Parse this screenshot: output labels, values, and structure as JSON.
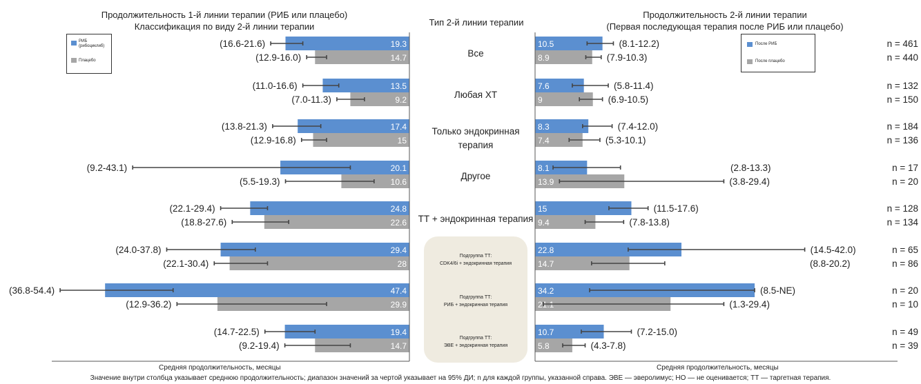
{
  "titles": {
    "left_line1": "Продолжительность 1-й линии терапии (РИБ или плацебо)",
    "left_line2": "Классификация по виду 2-й линии терапии",
    "center": "Тип 2-й линии терапии",
    "right_line1": "Продолжительность 2-й линии терапии",
    "right_line2": "(Первая последующая терапия после РИБ или плацебо)"
  },
  "legend_left": {
    "items": [
      {
        "label": "РИБ",
        "sublabel": "(рибоциклиб)",
        "color": "#5b8fd0"
      },
      {
        "label": "Плацебо",
        "sublabel": "",
        "color": "#a6a6a6"
      }
    ]
  },
  "legend_right": {
    "items": [
      {
        "label": "После РИБ",
        "color": "#5b8fd0"
      },
      {
        "label": "После плацебо",
        "color": "#a6a6a6"
      }
    ]
  },
  "categories": [
    {
      "line1": "Все",
      "line2": ""
    },
    {
      "line1": "Любая ХТ",
      "line2": ""
    },
    {
      "line1": "Только эндокринная",
      "line2": "терапия"
    },
    {
      "line1": "Другое",
      "line2": ""
    },
    {
      "line1": "ТТ + эндокринная терапия",
      "line2": ""
    }
  ],
  "subgroups": [
    {
      "line1": "Подгруппа ТТ:",
      "line2": "CDK4/6i + эндокринная терапия"
    },
    {
      "line1": "Подгруппа ТТ:",
      "line2": "РИБ + эндокринная терапия"
    },
    {
      "line1": "Подгруппа ТТ:",
      "line2": "ЭВЕ + эндокринная терапия"
    }
  ],
  "footer": {
    "left_axis": "Средняя продолжительность, месяцы",
    "right_axis": "Средняя продолжительность, месяцы",
    "note": "Значение внутри столбца указывает среднюю продолжительность; диапазон значений за чертой указывает на 95% ДИ; n для каждой группы, указанной справа. ЭВЕ — эверолимус; НО — не оценивается; ТТ — таргетная терапия."
  },
  "chart_data": [
    {
      "type": "bar",
      "orientation": "horizontal",
      "direction": "right-to-left",
      "title": "Продолжительность 1-й линии терапии (РИБ или плацебо)",
      "xlabel": "Средняя продолжительность, месяцы",
      "categories": [
        "Все",
        "Любая ХТ",
        "Только эндокринная терапия",
        "Другое",
        "ТТ + эндокринная терапия",
        "CDK4/6i + эндокринная терапия",
        "РИБ + эндокринная терапия",
        "ЭВЕ + эндокринная терапия"
      ],
      "series": [
        {
          "name": "РИБ",
          "color": "#5b8fd0",
          "values": [
            19.3,
            13.5,
            17.4,
            20.1,
            24.8,
            29.4,
            47.4,
            19.4
          ],
          "ci_text": [
            "(16.6-21.6)",
            "(11.0-16.6)",
            "(13.8-21.3)",
            "(9.2-43.1)",
            "(22.1-29.4)",
            "(24.0-37.8)",
            "(36.8-54.4)",
            "(14.7-22.5)"
          ],
          "ci_low": [
            16.6,
            11.0,
            13.8,
            9.2,
            22.1,
            24.0,
            36.8,
            14.7
          ],
          "ci_high": [
            21.6,
            16.6,
            21.3,
            43.1,
            29.4,
            37.8,
            54.4,
            22.5
          ]
        },
        {
          "name": "Плацебо",
          "color": "#a6a6a6",
          "values": [
            14.7,
            9.2,
            15.0,
            10.6,
            22.6,
            28.0,
            29.9,
            14.7
          ],
          "ci_text": [
            "(12.9-16.0)",
            "(7.0-11.3)",
            "(12.9-16.8)",
            "(5.5-19.3)",
            "(18.8-27.6)",
            "(22.1-30.4)",
            "(12.9-36.2)",
            "(9.2-19.4)"
          ],
          "ci_low": [
            12.9,
            7.0,
            12.9,
            5.5,
            18.8,
            22.1,
            12.9,
            9.2
          ],
          "ci_high": [
            16.0,
            11.3,
            16.8,
            19.3,
            27.6,
            30.4,
            36.2,
            19.4
          ]
        }
      ]
    },
    {
      "type": "bar",
      "orientation": "horizontal",
      "direction": "left-to-right",
      "title": "Продолжительность 2-й линии терапии",
      "subtitle": "(Первая последующая терапия после РИБ или плацебо)",
      "xlabel": "Средняя продолжительность, месяцы",
      "categories": [
        "Все",
        "Любая ХТ",
        "Только эндокринная терапия",
        "Другое",
        "ТТ + эндокринная терапия",
        "CDK4/6i + эндокринная терапия",
        "РИБ + эндокринная терапия",
        "ЭВЕ + эндокринная терапия"
      ],
      "series": [
        {
          "name": "После РИБ",
          "color": "#5b8fd0",
          "values": [
            10.5,
            7.6,
            8.3,
            8.1,
            15.0,
            22.8,
            34.2,
            10.7
          ],
          "ci_text": [
            "(8.1-12.2)",
            "(5.8-11.4)",
            "(7.4-12.0)",
            "(2.8-13.3)",
            "(11.5-17.6)",
            "(14.5-42.0)",
            "(8.5-NE)",
            "(7.2-15.0)"
          ],
          "ci_low": [
            8.1,
            5.8,
            7.4,
            2.8,
            11.5,
            14.5,
            8.5,
            7.2
          ],
          "ci_high": [
            12.2,
            11.4,
            12.0,
            13.3,
            17.6,
            42.0,
            null,
            15.0
          ],
          "n": [
            "n = 461",
            "n = 132",
            "n = 184",
            "n = 17",
            "n = 128",
            "n = 65",
            "n = 20",
            "n = 49"
          ]
        },
        {
          "name": "После плацебо",
          "color": "#a6a6a6",
          "values": [
            8.9,
            9.0,
            7.4,
            13.9,
            9.4,
            14.7,
            21.1,
            5.8
          ],
          "ci_text": [
            "(7.9-10.3)",
            "(6.9-10.5)",
            "(5.3-10.1)",
            "(3.8-29.4)",
            "(7.8-13.8)",
            "(8.8-20.2)",
            "(1.3-29.4)",
            "(4.3-7.8)"
          ],
          "ci_low": [
            7.9,
            6.9,
            5.3,
            3.8,
            7.8,
            8.8,
            1.3,
            4.3
          ],
          "ci_high": [
            10.3,
            10.5,
            10.1,
            29.4,
            13.8,
            20.2,
            29.4,
            7.8
          ],
          "n": [
            "n = 440",
            "n = 150",
            "n = 136",
            "n = 20",
            "n = 134",
            "n = 86",
            "n = 10",
            "n = 39"
          ]
        }
      ]
    }
  ]
}
